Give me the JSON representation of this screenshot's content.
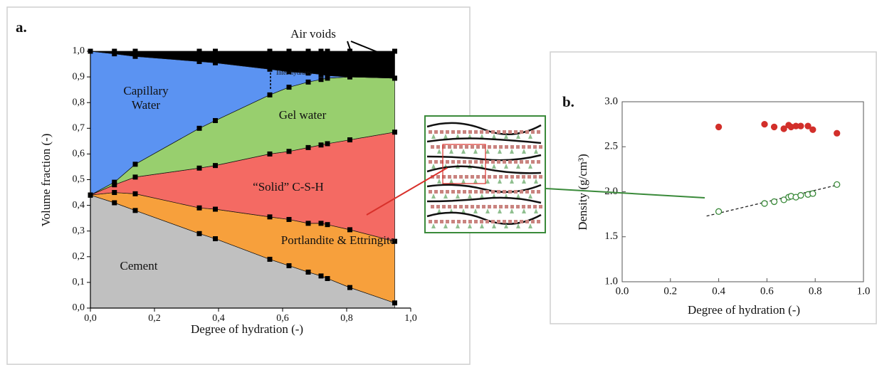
{
  "chart_data": [
    {
      "type": "area",
      "stacked": true,
      "panel_label": "a.",
      "xlabel": "Degree of hydration (-)",
      "ylabel": "Volume fraction (-)",
      "xlim": [
        0,
        1
      ],
      "ylim": [
        0,
        1
      ],
      "xticks": [
        {
          "value": 0,
          "label": "0,0"
        },
        {
          "value": 0.2,
          "label": "0,2"
        },
        {
          "value": 0.4,
          "label": "0,4"
        },
        {
          "value": 0.6,
          "label": "0,6"
        },
        {
          "value": 0.8,
          "label": "0,8"
        },
        {
          "value": 1,
          "label": "1,0"
        }
      ],
      "yticks": [
        {
          "value": 0,
          "label": "0,0"
        },
        {
          "value": 0.1,
          "label": "0,1"
        },
        {
          "value": 0.2,
          "label": "0,2"
        },
        {
          "value": 0.3,
          "label": "0,3"
        },
        {
          "value": 0.4,
          "label": "0,4"
        },
        {
          "value": 0.5,
          "label": "0,5"
        },
        {
          "value": 0.6,
          "label": "0,6"
        },
        {
          "value": 0.7,
          "label": "0,7"
        },
        {
          "value": 0.8,
          "label": "0,8"
        },
        {
          "value": 0.9,
          "label": "0,9"
        },
        {
          "value": 1,
          "label": "1,0"
        }
      ],
      "x": [
        0,
        0.075,
        0.14,
        0.34,
        0.39,
        0.56,
        0.62,
        0.68,
        0.72,
        0.74,
        0.81,
        0.95
      ],
      "series": [
        {
          "name": "Cement",
          "color": "#c0c0c0",
          "values": [
            0.44,
            0.41,
            0.38,
            0.29,
            0.27,
            0.19,
            0.165,
            0.14,
            0.125,
            0.115,
            0.08,
            0.02
          ]
        },
        {
          "name": "Portlandite & Ettringite",
          "color": "#f7a03c",
          "values": [
            0,
            0.04,
            0.065,
            0.1,
            0.115,
            0.165,
            0.18,
            0.19,
            0.205,
            0.21,
            0.225,
            0.24
          ]
        },
        {
          "name": "“Solid” C-S-H",
          "color": "#f46a63",
          "values": [
            0,
            0.03,
            0.065,
            0.155,
            0.17,
            0.245,
            0.265,
            0.295,
            0.305,
            0.315,
            0.35,
            0.425
          ]
        },
        {
          "name": "Gel water",
          "color": "#98cf6e",
          "values": [
            0,
            0.01,
            0.05,
            0.155,
            0.175,
            0.23,
            0.25,
            0.255,
            0.255,
            0.255,
            0.245,
            0.21
          ]
        },
        {
          "name": "Capillary Water",
          "color": "#5b93f2",
          "values": [
            0.56,
            0.5,
            0.42,
            0.26,
            0.225,
            0.1,
            0.06,
            0.035,
            0.02,
            0.01,
            0,
            0
          ]
        },
        {
          "name": "Air voids",
          "color": "#000000",
          "values": [
            0,
            0.01,
            0.02,
            0.04,
            0.045,
            0.07,
            0.08,
            0.085,
            0.09,
            0.095,
            0.1,
            0.105
          ]
        }
      ],
      "annotation": "Inter-hydrates"
    },
    {
      "type": "scatter",
      "panel_label": "b.",
      "xlabel": "Degree of hydration (-)",
      "ylabel": "Density (g/cm³)",
      "xlim": [
        0,
        1
      ],
      "ylim": [
        1,
        3
      ],
      "xticks": [
        {
          "value": 0,
          "label": "0.0"
        },
        {
          "value": 0.2,
          "label": "0.2"
        },
        {
          "value": 0.4,
          "label": "0.4"
        },
        {
          "value": 0.6,
          "label": "0.6"
        },
        {
          "value": 0.8,
          "label": "0.8"
        },
        {
          "value": 1,
          "label": "1.0"
        }
      ],
      "yticks": [
        {
          "value": 1,
          "label": "1.0"
        },
        {
          "value": 1.5,
          "label": "1.5"
        },
        {
          "value": 2,
          "label": "2.0"
        },
        {
          "value": 2.5,
          "label": "2.5"
        },
        {
          "value": 3,
          "label": "3.0"
        }
      ],
      "series": [
        {
          "color": "#d22f2a",
          "filled": true,
          "x": [
            0.4,
            0.59,
            0.63,
            0.67,
            0.69,
            0.7,
            0.72,
            0.74,
            0.77,
            0.79,
            0.89
          ],
          "y": [
            2.72,
            2.75,
            2.72,
            2.7,
            2.74,
            2.72,
            2.73,
            2.73,
            2.73,
            2.69,
            2.65
          ]
        },
        {
          "color": "#3a8a3a",
          "filled": false,
          "x": [
            0.4,
            0.59,
            0.63,
            0.67,
            0.69,
            0.7,
            0.72,
            0.74,
            0.77,
            0.79,
            0.89
          ],
          "y": [
            1.78,
            1.87,
            1.89,
            1.91,
            1.94,
            1.95,
            1.94,
            1.96,
            1.97,
            1.98,
            2.08
          ]
        }
      ],
      "trendline": {
        "x": [
          0.35,
          0.9
        ],
        "y": [
          1.73,
          2.08
        ]
      }
    }
  ]
}
